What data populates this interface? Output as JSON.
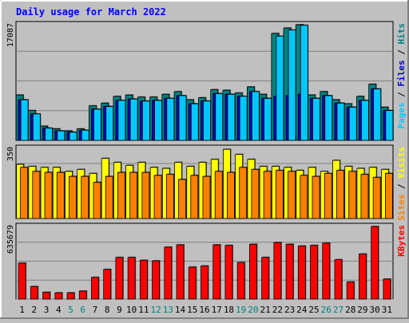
{
  "chart_data": {
    "type": "bar",
    "title": "Daily usage for March 2022",
    "categories": [
      "1",
      "2",
      "3",
      "4",
      "5",
      "6",
      "7",
      "8",
      "9",
      "10",
      "11",
      "12",
      "13",
      "14",
      "15",
      "16",
      "17",
      "18",
      "19",
      "20",
      "21",
      "22",
      "23",
      "24",
      "25",
      "26",
      "27",
      "28",
      "29",
      "30",
      "31"
    ],
    "weekend_days": [
      "5",
      "6",
      "12",
      "13",
      "19",
      "20",
      "26",
      "27"
    ],
    "grid": true,
    "legend": "right",
    "panels": [
      {
        "name": "top",
        "ymax_label": "17087",
        "ylim": [
          0,
          17087
        ],
        "legend": [
          {
            "text": "Pages",
            "color": "#00c8ff"
          },
          {
            "text": " / ",
            "color": "#000000"
          },
          {
            "text": "Files",
            "color": "#0000c8"
          },
          {
            "text": " / ",
            "color": "#000000"
          },
          {
            "text": "Hits",
            "color": "#008080"
          }
        ],
        "series": [
          {
            "name": "Hits",
            "color": "#008080",
            "values": [
              6700,
              4400,
              2100,
              1700,
              1400,
              1700,
              5100,
              5500,
              6500,
              6700,
              6400,
              6400,
              6800,
              7200,
              6000,
              6300,
              7500,
              7400,
              7000,
              7900,
              6800,
              15800,
              16600,
              17087,
              6700,
              7200,
              6000,
              5400,
              6500,
              8300,
              4900
            ]
          },
          {
            "name": "Files",
            "color": "#0000c8",
            "values": [
              6000,
              3900,
              1800,
              1400,
              1200,
              1500,
              4600,
              5000,
              5900,
              6100,
              5800,
              5900,
              6200,
              6600,
              5400,
              5800,
              6900,
              6800,
              6500,
              7200,
              6200,
              6500,
              6600,
              6800,
              6200,
              6600,
              5500,
              4900,
              5900,
              7600,
              4400
            ]
          },
          {
            "name": "Pages",
            "color": "#00c8ff",
            "values": [
              6000,
              3900,
              1800,
              1400,
              1200,
              1500,
              4600,
              5000,
              5900,
              6100,
              5800,
              5900,
              6200,
              6600,
              5400,
              5800,
              6900,
              6800,
              6500,
              7200,
              6200,
              15400,
              16300,
              17000,
              6200,
              6600,
              5500,
              4900,
              5900,
              7600,
              4400
            ]
          }
        ]
      },
      {
        "name": "middle",
        "ymax_label": "350",
        "ylim": [
          0,
          350
        ],
        "legend": [
          {
            "text": "Sites",
            "color": "#ff8000"
          },
          {
            "text": " / ",
            "color": "#000000"
          },
          {
            "text": "Visits",
            "color": "#ffff00"
          }
        ],
        "series": [
          {
            "name": "Visits",
            "color": "#ffff00",
            "values": [
              270,
              260,
              255,
              255,
              235,
              245,
              225,
              300,
              280,
              265,
              280,
              255,
              250,
              280,
              260,
              280,
              295,
              345,
              320,
              295,
              260,
              260,
              255,
              240,
              255,
              235,
              290,
              260,
              250,
              255,
              245
            ]
          },
          {
            "name": "Sites",
            "color": "#ff8000",
            "values": [
              255,
              235,
              230,
              230,
              210,
              210,
              180,
              210,
              230,
              230,
              230,
              215,
              220,
              195,
              215,
              210,
              235,
              230,
              255,
              245,
              235,
              240,
              235,
              215,
              210,
              225,
              240,
              235,
              220,
              205,
              225
            ]
          }
        ]
      },
      {
        "name": "bottom",
        "ymax_label": "635679",
        "ylim": [
          0,
          635679
        ],
        "legend": [
          {
            "text": "KBytes",
            "color": "#ff0000"
          }
        ],
        "series": [
          {
            "name": "KBytes",
            "color": "#ff0000",
            "values": [
              315000,
              110000,
              60000,
              55000,
              55000,
              70000,
              190000,
              260000,
              365000,
              365000,
              340000,
              335000,
              455000,
              475000,
              280000,
              290000,
              475000,
              470000,
              320000,
              480000,
              365000,
              495000,
              480000,
              465000,
              470000,
              490000,
              345000,
              150000,
              395000,
              635679,
              175000
            ]
          }
        ]
      }
    ]
  }
}
